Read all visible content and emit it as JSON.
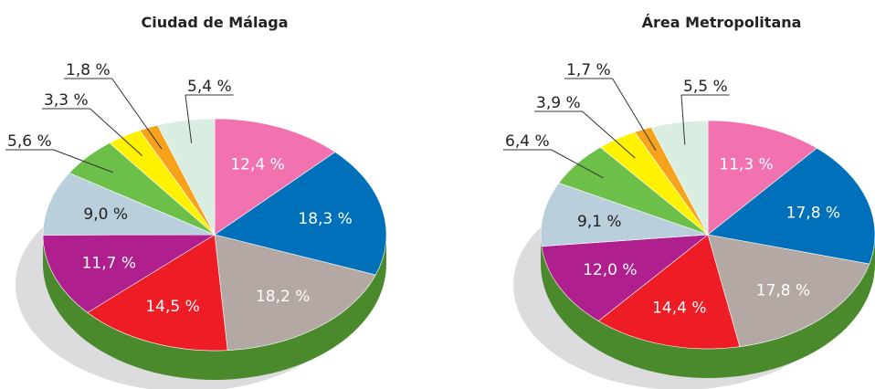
{
  "chart_data": [
    {
      "type": "pie",
      "title": "Ciudad de Málaga",
      "values": [
        12.4,
        18.3,
        18.2,
        14.5,
        11.7,
        9.0,
        5.6,
        3.3,
        1.8,
        5.4
      ],
      "value_labels": [
        "12,4 %",
        "18,3 %",
        "18,2 %",
        "14,5 %",
        "11,7 %",
        "9,0 %",
        "5,6 %",
        "3,3 %",
        "1,8 %",
        "5,4 %"
      ],
      "colors": [
        "#f272b0",
        "#0070bb",
        "#b3a8a3",
        "#ee1c25",
        "#b01f8e",
        "#b9cfdc",
        "#6cc04a",
        "#fff200",
        "#f7a21b",
        "#d9ede1"
      ]
    },
    {
      "type": "pie",
      "title": "Área Metropolitana",
      "values": [
        11.3,
        17.8,
        17.8,
        14.4,
        12.0,
        9.1,
        6.4,
        3.9,
        1.7,
        5.5
      ],
      "value_labels": [
        "11,3 %",
        "17,8 %",
        "17,8 %",
        "14,4 %",
        "12,0 %",
        "9,1 %",
        "6,4 %",
        "3,9 %",
        "1,7 %",
        "5,5 %"
      ],
      "colors": [
        "#f272b0",
        "#0070bb",
        "#b3a8a3",
        "#ee1c25",
        "#b01f8e",
        "#b9cfdc",
        "#6cc04a",
        "#fff200",
        "#f7a21b",
        "#d9ede1"
      ]
    }
  ]
}
